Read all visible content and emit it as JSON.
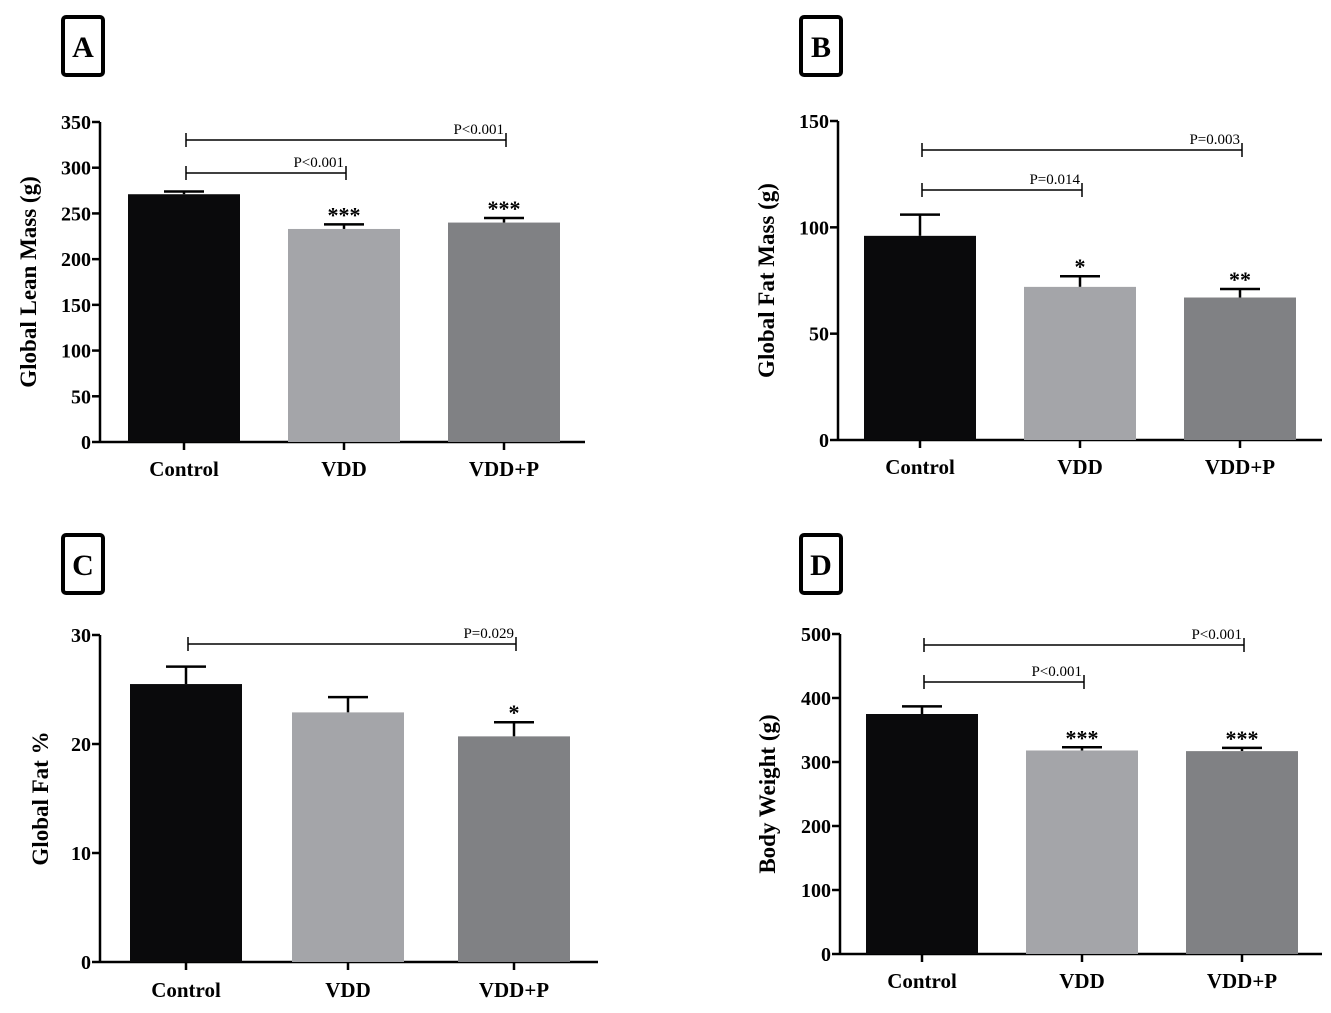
{
  "chart_data": [
    {
      "type": "bar",
      "panel": "A",
      "categories": [
        "Control",
        "VDD",
        "VDD+P"
      ],
      "values": [
        271,
        233,
        240
      ],
      "errors": [
        3,
        5,
        5
      ],
      "colors": [
        "#0a0a0c",
        "#a4a5a9",
        "#808184"
      ],
      "ylabel": "Global Lean Mass (g)",
      "ylim": [
        0,
        350
      ],
      "yticks": [
        0,
        50,
        100,
        150,
        200,
        250,
        300,
        350
      ],
      "stars": [
        "",
        "***",
        "***"
      ],
      "comparisons": [
        {
          "from": 0,
          "to": 1,
          "label": "P<0.001"
        },
        {
          "from": 0,
          "to": 2,
          "label": "P<0.001"
        }
      ]
    },
    {
      "type": "bar",
      "panel": "B",
      "categories": [
        "Control",
        "VDD",
        "VDD+P"
      ],
      "values": [
        96,
        72,
        67
      ],
      "errors": [
        10,
        5,
        4
      ],
      "colors": [
        "#0a0a0c",
        "#a4a5a9",
        "#808184"
      ],
      "ylabel": "Global Fat Mass (g)",
      "ylim": [
        0,
        150
      ],
      "yticks": [
        0,
        50,
        100,
        150
      ],
      "stars": [
        "",
        "*",
        "**"
      ],
      "comparisons": [
        {
          "from": 0,
          "to": 1,
          "label": "P=0.014"
        },
        {
          "from": 0,
          "to": 2,
          "label": "P=0.003"
        }
      ]
    },
    {
      "type": "bar",
      "panel": "C",
      "categories": [
        "Control",
        "VDD",
        "VDD+P"
      ],
      "values": [
        25.5,
        22.9,
        20.7
      ],
      "errors": [
        1.6,
        1.4,
        1.3
      ],
      "colors": [
        "#0a0a0c",
        "#a4a5a9",
        "#808184"
      ],
      "ylabel": "Global Fat  %",
      "ylim": [
        0,
        30
      ],
      "yticks": [
        0,
        10,
        20,
        30
      ],
      "stars": [
        "",
        "",
        "*"
      ],
      "comparisons": [
        {
          "from": 0,
          "to": 2,
          "label": "P=0.029"
        }
      ]
    },
    {
      "type": "bar",
      "panel": "D",
      "categories": [
        "Control",
        "VDD",
        "VDD+P"
      ],
      "values": [
        375,
        318,
        317
      ],
      "errors": [
        12,
        5,
        5
      ],
      "colors": [
        "#0a0a0c",
        "#a4a5a9",
        "#808184"
      ],
      "ylabel": "Body Weight (g)",
      "ylim": [
        0,
        500
      ],
      "yticks": [
        0,
        100,
        200,
        300,
        400,
        500
      ],
      "stars": [
        "",
        "***",
        "***"
      ],
      "comparisons": [
        {
          "from": 0,
          "to": 1,
          "label": "P<0.001"
        },
        {
          "from": 0,
          "to": 2,
          "label": "P<0.001"
        }
      ]
    }
  ]
}
